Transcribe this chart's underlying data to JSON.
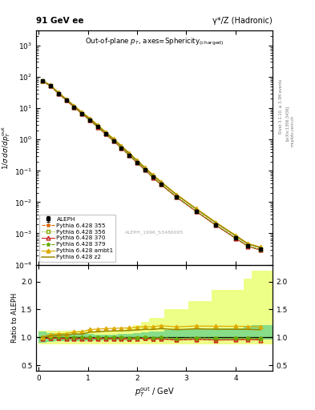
{
  "title_left": "91 GeV ee",
  "title_right": "γ*/Z (Hadronic)",
  "plot_title": "Out-of-plane p_T, axes=Sphericity",
  "plot_title_suffix": "(charged)",
  "watermark": "ALEPH_1996_S3486095",
  "rivet_label": "Rivet 3.1.10, ≥ 3.3M events",
  "arxiv_label": "[arXiv:1306.3436]",
  "mcplots_label": "mcplots.cern.ch",
  "ylim_main": [
    0.0001,
    3000
  ],
  "xdata": [
    0.08,
    0.24,
    0.4,
    0.56,
    0.72,
    0.88,
    1.04,
    1.2,
    1.36,
    1.52,
    1.68,
    1.84,
    2.0,
    2.16,
    2.32,
    2.48,
    2.8,
    3.2,
    3.6,
    4.0,
    4.25,
    4.5
  ],
  "aleph_y": [
    75.0,
    52.0,
    30.0,
    18.5,
    11.0,
    6.8,
    4.2,
    2.55,
    1.52,
    0.92,
    0.545,
    0.32,
    0.185,
    0.108,
    0.063,
    0.038,
    0.015,
    0.0052,
    0.0019,
    0.00073,
    0.0004,
    0.00031
  ],
  "aleph_yerr": [
    4.0,
    2.5,
    1.5,
    1.0,
    0.6,
    0.4,
    0.25,
    0.15,
    0.09,
    0.055,
    0.032,
    0.019,
    0.011,
    0.007,
    0.004,
    0.0025,
    0.0012,
    0.0005,
    0.00019,
    8e-05,
    4.5e-05,
    3.5e-05
  ],
  "py355_y": [
    73.0,
    51.0,
    29.5,
    18.0,
    10.7,
    6.6,
    4.1,
    2.5,
    1.48,
    0.9,
    0.53,
    0.31,
    0.181,
    0.106,
    0.061,
    0.037,
    0.0143,
    0.00502,
    0.00181,
    0.0007,
    0.000391,
    0.000301
  ],
  "py356_y": [
    74.0,
    52.0,
    30.0,
    18.3,
    10.9,
    6.7,
    4.15,
    2.52,
    1.5,
    0.91,
    0.54,
    0.315,
    0.183,
    0.107,
    0.062,
    0.0375,
    0.01453,
    0.00511,
    0.001853,
    0.000712,
    0.000392,
    0.000301
  ],
  "py370_y": [
    73.5,
    51.5,
    29.7,
    18.1,
    10.8,
    6.65,
    4.12,
    2.51,
    1.49,
    0.905,
    0.535,
    0.313,
    0.182,
    0.1065,
    0.0615,
    0.037,
    0.01435,
    0.00504,
    0.001815,
    0.0007,
    0.000385,
    0.000296
  ],
  "py379_y": [
    74.5,
    52.5,
    30.3,
    18.5,
    11.1,
    6.8,
    4.2,
    2.55,
    1.52,
    0.92,
    0.545,
    0.319,
    0.184,
    0.1082,
    0.0625,
    0.03805,
    0.01474,
    0.00518,
    0.001872,
    0.000721,
    0.000396,
    0.000305
  ],
  "pyambt1_y": [
    76.0,
    54.5,
    32.0,
    19.8,
    12.1,
    7.5,
    4.8,
    2.93,
    1.76,
    1.07,
    0.636,
    0.375,
    0.219,
    0.129,
    0.075,
    0.046,
    0.01785,
    0.00627,
    0.00228,
    0.000876,
    0.000479,
    0.000369
  ],
  "pyz2_y": [
    75.5,
    53.5,
    31.3,
    19.3,
    11.7,
    7.2,
    4.6,
    2.81,
    1.69,
    1.028,
    0.61,
    0.36,
    0.21,
    0.1237,
    0.072,
    0.044,
    0.0171,
    0.006,
    0.00218,
    0.000837,
    0.000458,
    0.000353
  ],
  "ratio_py355": [
    0.975,
    0.981,
    0.983,
    0.973,
    0.973,
    0.971,
    0.976,
    0.98,
    0.974,
    0.978,
    0.972,
    0.969,
    0.978,
    0.981,
    0.968,
    0.974,
    0.953,
    0.965,
    0.953,
    0.959,
    0.978,
    0.971
  ],
  "ratio_py356": [
    0.987,
    1.0,
    1.0,
    0.989,
    0.991,
    0.985,
    0.988,
    0.988,
    0.987,
    0.989,
    0.991,
    0.984,
    0.989,
    0.991,
    0.984,
    0.987,
    0.969,
    0.983,
    0.976,
    0.975,
    0.98,
    0.971
  ],
  "ratio_py370": [
    0.98,
    0.99,
    0.99,
    0.978,
    0.982,
    0.978,
    0.981,
    0.984,
    0.98,
    0.983,
    0.982,
    0.978,
    0.984,
    0.986,
    0.976,
    0.974,
    0.957,
    0.969,
    0.955,
    0.959,
    0.963,
    0.955
  ],
  "ratio_py379": [
    0.993,
    1.01,
    1.01,
    1.0,
    1.009,
    1.0,
    1.0,
    1.0,
    1.0,
    1.0,
    1.0,
    0.997,
    0.995,
    1.002,
    0.992,
    1.001,
    0.983,
    0.996,
    0.985,
    0.988,
    0.99,
    0.984
  ],
  "ratio_pyambt1": [
    1.013,
    1.048,
    1.067,
    1.07,
    1.1,
    1.103,
    1.143,
    1.149,
    1.158,
    1.163,
    1.167,
    1.172,
    1.184,
    1.194,
    1.19,
    1.211,
    1.19,
    1.206,
    1.2,
    1.2,
    1.198,
    1.19
  ],
  "ratio_pyz2": [
    1.007,
    1.029,
    1.043,
    1.043,
    1.064,
    1.059,
    1.095,
    1.102,
    1.112,
    1.117,
    1.119,
    1.125,
    1.135,
    1.145,
    1.143,
    1.158,
    1.14,
    1.154,
    1.147,
    1.146,
    1.145,
    1.139
  ],
  "color_355": "#dd6600",
  "color_356": "#88aa00",
  "color_370": "#cc2222",
  "color_379": "#66aa00",
  "color_ambt1": "#ddaa00",
  "color_z2": "#998800",
  "bg_green": "#88dd88",
  "bg_yellow": "#eeff88",
  "xmin": -0.05,
  "xmax": 4.75,
  "band_x": [
    0.0,
    0.16,
    0.32,
    0.48,
    0.64,
    0.8,
    0.96,
    1.12,
    1.28,
    1.44,
    1.6,
    1.76,
    1.92,
    2.08,
    2.24,
    2.56,
    3.04,
    3.52,
    4.16,
    4.32
  ],
  "band_xwidth": [
    0.16,
    0.16,
    0.16,
    0.16,
    0.16,
    0.16,
    0.16,
    0.16,
    0.16,
    0.16,
    0.16,
    0.16,
    0.16,
    0.16,
    0.32,
    0.48,
    0.48,
    0.64,
    0.16,
    0.43
  ],
  "band_green_lo": [
    0.9,
    0.92,
    0.93,
    0.93,
    0.94,
    0.94,
    0.94,
    0.95,
    0.95,
    0.95,
    0.95,
    0.95,
    0.96,
    0.96,
    0.96,
    0.97,
    0.97,
    0.97,
    0.97,
    0.97
  ],
  "band_green_hi": [
    1.1,
    1.08,
    1.07,
    1.07,
    1.06,
    1.06,
    1.06,
    1.05,
    1.05,
    1.05,
    1.06,
    1.07,
    1.08,
    1.09,
    1.1,
    1.13,
    1.15,
    1.17,
    1.19,
    1.22
  ],
  "band_yellow_lo": [
    0.88,
    0.88,
    0.88,
    0.88,
    0.88,
    0.88,
    0.88,
    0.88,
    0.88,
    0.88,
    0.88,
    0.88,
    0.88,
    0.88,
    0.88,
    0.88,
    0.88,
    0.88,
    0.88,
    0.88
  ],
  "band_yellow_hi": [
    1.12,
    1.12,
    1.12,
    1.12,
    1.12,
    1.12,
    1.12,
    1.12,
    1.12,
    1.12,
    1.14,
    1.18,
    1.22,
    1.28,
    1.35,
    1.5,
    1.65,
    1.85,
    2.05,
    2.2
  ]
}
